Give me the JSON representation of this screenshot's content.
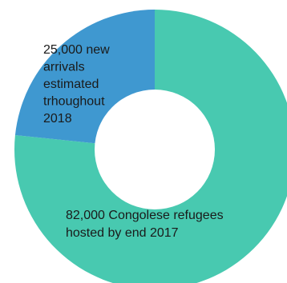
{
  "chart_data": {
    "type": "pie",
    "style": "donut",
    "title": "",
    "slices": [
      {
        "value": 82000,
        "label": "82,000 Congolese refugees hosted by end 2017",
        "label_lines": [
          "82,000 Congolese refugees",
          "hosted by end 2017"
        ],
        "color": "#48c9b0"
      },
      {
        "value": 25000,
        "label": "25,000 new arrivals estimated trhoughout 2018",
        "label_lines": [
          "25,000 new",
          "arrivals",
          "estimated",
          "trhoughout",
          "2018"
        ],
        "color": "#3f98d0"
      }
    ],
    "legend": "none"
  }
}
